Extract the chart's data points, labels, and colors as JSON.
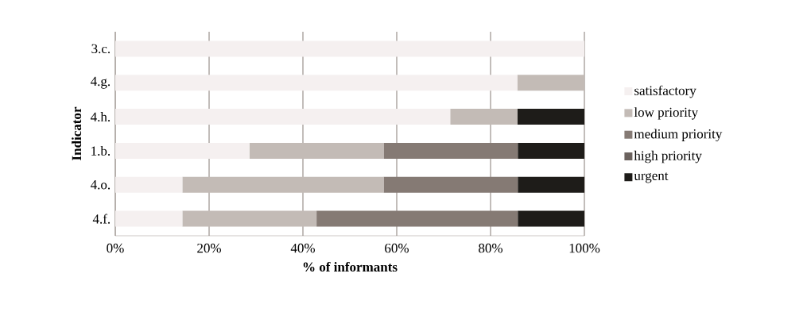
{
  "chart_data": {
    "type": "bar",
    "orientation": "horizontal",
    "stacked": true,
    "categories": [
      "3.c.",
      "4.g.",
      "4.h.",
      "1.b.",
      "4.o.",
      "4.f."
    ],
    "series": [
      {
        "name": "satisfactory",
        "color": "#f5f0f0",
        "values": [
          100,
          85.7,
          71.4,
          28.6,
          14.3,
          14.3
        ]
      },
      {
        "name": "low priority",
        "color": "#c3bbb6",
        "values": [
          0,
          14.3,
          14.3,
          28.6,
          42.9,
          28.6
        ]
      },
      {
        "name": "medium priority",
        "color": "#857a74",
        "values": [
          0,
          0,
          0,
          28.6,
          28.6,
          42.9
        ]
      },
      {
        "name": "high priority",
        "color": "#6b625e",
        "values": [
          0,
          0,
          0,
          0,
          0,
          0
        ]
      },
      {
        "name": "urgent",
        "color": "#1e1c19",
        "values": [
          0,
          0,
          14.3,
          14.3,
          14.3,
          14.3
        ]
      }
    ],
    "xlim": [
      0,
      100
    ],
    "xticks": [
      {
        "value": 0,
        "label": "0%"
      },
      {
        "value": 20,
        "label": "20%"
      },
      {
        "value": 40,
        "label": "40%"
      },
      {
        "value": 60,
        "label": "60%"
      },
      {
        "value": 80,
        "label": "80%"
      },
      {
        "value": 100,
        "label": "100%"
      }
    ],
    "xlabel": "% of informants",
    "ylabel": "Indicator",
    "grid": "x",
    "legend": "right"
  }
}
